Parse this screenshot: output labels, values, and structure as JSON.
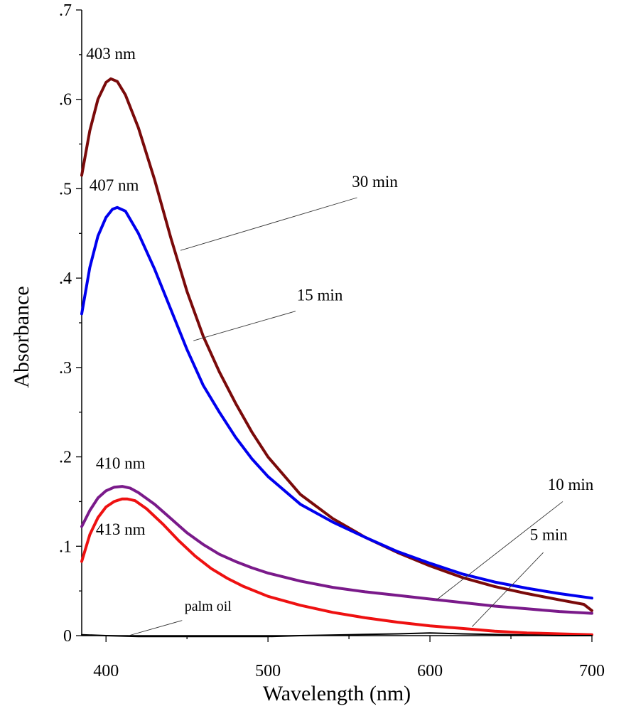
{
  "chart_data": {
    "type": "line",
    "title": "",
    "xlabel": "Wavelength (nm)",
    "ylabel": "Absorbance",
    "xlim": [
      385,
      700
    ],
    "ylim": [
      0,
      0.7
    ],
    "x_ticks": [
      {
        "value": 400,
        "label": "400"
      },
      {
        "value": 500,
        "label": "500"
      },
      {
        "value": 600,
        "label": "600"
      },
      {
        "value": 700,
        "label": "700"
      }
    ],
    "y_ticks": [
      {
        "value": 0,
        "label": "0"
      },
      {
        "value": 0.1,
        "label": ".1"
      },
      {
        "value": 0.2,
        "label": ".2"
      },
      {
        "value": 0.3,
        "label": ".3"
      },
      {
        "value": 0.4,
        "label": ".4"
      },
      {
        "value": 0.5,
        "label": ".5"
      },
      {
        "value": 0.6,
        "label": ".6"
      },
      {
        "value": 0.7,
        "label": ".7"
      }
    ],
    "grid": false,
    "series": [
      {
        "name": "30 min",
        "color": "#7a0a0a",
        "width": 4,
        "points": [
          [
            385,
            0.515
          ],
          [
            390,
            0.565
          ],
          [
            395,
            0.6
          ],
          [
            400,
            0.619
          ],
          [
            403,
            0.623
          ],
          [
            407,
            0.62
          ],
          [
            412,
            0.605
          ],
          [
            420,
            0.568
          ],
          [
            430,
            0.51
          ],
          [
            440,
            0.445
          ],
          [
            450,
            0.385
          ],
          [
            460,
            0.335
          ],
          [
            470,
            0.295
          ],
          [
            480,
            0.26
          ],
          [
            490,
            0.228
          ],
          [
            500,
            0.2
          ],
          [
            520,
            0.158
          ],
          [
            540,
            0.131
          ],
          [
            560,
            0.11
          ],
          [
            580,
            0.093
          ],
          [
            600,
            0.078
          ],
          [
            620,
            0.065
          ],
          [
            640,
            0.055
          ],
          [
            660,
            0.047
          ],
          [
            680,
            0.04
          ],
          [
            695,
            0.035
          ],
          [
            700,
            0.028
          ]
        ]
      },
      {
        "name": "15 min",
        "color": "#0000ee",
        "width": 4,
        "points": [
          [
            385,
            0.36
          ],
          [
            390,
            0.412
          ],
          [
            395,
            0.447
          ],
          [
            400,
            0.468
          ],
          [
            404,
            0.477
          ],
          [
            407,
            0.479
          ],
          [
            412,
            0.475
          ],
          [
            420,
            0.45
          ],
          [
            430,
            0.41
          ],
          [
            440,
            0.365
          ],
          [
            450,
            0.32
          ],
          [
            460,
            0.28
          ],
          [
            470,
            0.25
          ],
          [
            480,
            0.222
          ],
          [
            490,
            0.198
          ],
          [
            500,
            0.178
          ],
          [
            520,
            0.147
          ],
          [
            540,
            0.127
          ],
          [
            560,
            0.11
          ],
          [
            580,
            0.094
          ],
          [
            600,
            0.081
          ],
          [
            620,
            0.069
          ],
          [
            640,
            0.06
          ],
          [
            660,
            0.053
          ],
          [
            680,
            0.047
          ],
          [
            700,
            0.042
          ]
        ]
      },
      {
        "name": "10 min",
        "color": "#7a1a8a",
        "width": 4,
        "points": [
          [
            385,
            0.122
          ],
          [
            390,
            0.14
          ],
          [
            395,
            0.154
          ],
          [
            400,
            0.162
          ],
          [
            405,
            0.166
          ],
          [
            410,
            0.167
          ],
          [
            415,
            0.165
          ],
          [
            420,
            0.16
          ],
          [
            430,
            0.147
          ],
          [
            440,
            0.131
          ],
          [
            450,
            0.115
          ],
          [
            460,
            0.102
          ],
          [
            470,
            0.091
          ],
          [
            480,
            0.083
          ],
          [
            490,
            0.076
          ],
          [
            500,
            0.07
          ],
          [
            520,
            0.061
          ],
          [
            540,
            0.054
          ],
          [
            560,
            0.049
          ],
          [
            580,
            0.045
          ],
          [
            600,
            0.041
          ],
          [
            620,
            0.037
          ],
          [
            640,
            0.033
          ],
          [
            660,
            0.03
          ],
          [
            680,
            0.027
          ],
          [
            700,
            0.025
          ]
        ]
      },
      {
        "name": "5 min",
        "color": "#ee1111",
        "width": 4,
        "points": [
          [
            385,
            0.083
          ],
          [
            390,
            0.113
          ],
          [
            395,
            0.132
          ],
          [
            400,
            0.144
          ],
          [
            405,
            0.15
          ],
          [
            410,
            0.153
          ],
          [
            413,
            0.153
          ],
          [
            418,
            0.151
          ],
          [
            425,
            0.142
          ],
          [
            435,
            0.125
          ],
          [
            445,
            0.106
          ],
          [
            455,
            0.089
          ],
          [
            465,
            0.075
          ],
          [
            475,
            0.064
          ],
          [
            485,
            0.055
          ],
          [
            500,
            0.044
          ],
          [
            520,
            0.034
          ],
          [
            540,
            0.026
          ],
          [
            560,
            0.02
          ],
          [
            580,
            0.015
          ],
          [
            600,
            0.011
          ],
          [
            620,
            0.008
          ],
          [
            640,
            0.005
          ],
          [
            660,
            0.003
          ],
          [
            680,
            0.002
          ],
          [
            700,
            0.001
          ]
        ]
      },
      {
        "name": "palm oil",
        "color": "#000000",
        "width": 2,
        "points": [
          [
            385,
            0.001
          ],
          [
            400,
            0.0
          ],
          [
            420,
            -0.001
          ],
          [
            450,
            -0.001
          ],
          [
            480,
            -0.001
          ],
          [
            500,
            -0.001
          ],
          [
            520,
            0.0
          ],
          [
            550,
            0.001
          ],
          [
            580,
            0.002
          ],
          [
            600,
            0.003
          ],
          [
            620,
            0.002
          ],
          [
            650,
            0.001
          ],
          [
            680,
            0.0
          ],
          [
            700,
            0.0
          ]
        ]
      }
    ],
    "annotations": [
      {
        "text": "403 nm",
        "x": 403,
        "y": 0.645,
        "style": "annot"
      },
      {
        "text": "407 nm",
        "x": 405,
        "y": 0.498,
        "style": "annot"
      },
      {
        "text": "410 nm",
        "x": 409,
        "y": 0.187,
        "style": "annot"
      },
      {
        "text": "413 nm",
        "x": 409,
        "y": 0.113,
        "style": "annot"
      },
      {
        "text": "30 min",
        "x": 566,
        "y": 0.502,
        "style": "annot",
        "leader": [
          [
            555,
            0.49
          ],
          [
            446,
            0.431
          ]
        ]
      },
      {
        "text": "15 min",
        "x": 532,
        "y": 0.375,
        "style": "annot",
        "leader": [
          [
            517,
            0.363
          ],
          [
            454,
            0.33
          ]
        ]
      },
      {
        "text": "10 min",
        "x": 701,
        "y": 0.163,
        "style": "annot",
        "anchor": "end",
        "leader": [
          [
            682,
            0.15
          ],
          [
            604,
            0.04
          ]
        ]
      },
      {
        "text": "5 min",
        "x": 685,
        "y": 0.107,
        "style": "annot",
        "anchor": "end",
        "leader": [
          [
            670,
            0.093
          ],
          [
            626,
            0.01
          ]
        ]
      },
      {
        "text": "palm oil",
        "x": 463,
        "y": 0.028,
        "style": "annot-small",
        "leader": [
          [
            447,
            0.017
          ],
          [
            414,
            0.0
          ]
        ]
      }
    ]
  }
}
